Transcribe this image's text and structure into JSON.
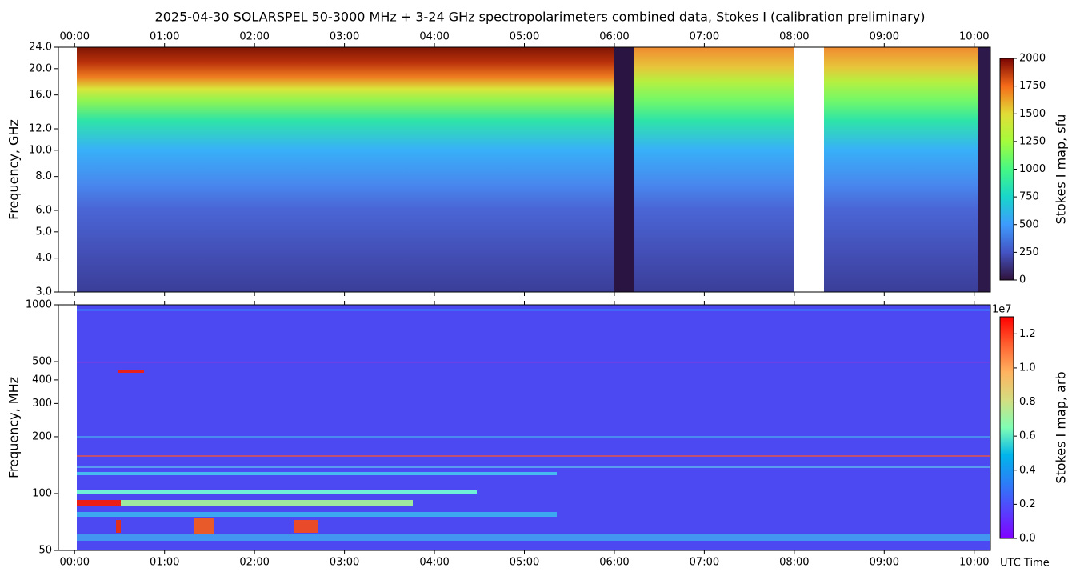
{
  "chart_data": [
    {
      "type": "heatmap",
      "title": "2025-04-30  SOLARSPEL  50-3000 MHz  +  3-24 GHz  spectropolarimeters combined data,  Stokes I  (calibration preliminary)",
      "y_label": "Frequency, GHz",
      "y_scale": "log",
      "ylim": [
        3,
        24
      ],
      "yticks": [
        {
          "value": 3,
          "label": "3.0"
        },
        {
          "value": 4,
          "label": "4.0"
        },
        {
          "value": 5,
          "label": "5.0"
        },
        {
          "value": 6,
          "label": "6.0"
        },
        {
          "value": 8,
          "label": "8.0"
        },
        {
          "value": 10,
          "label": "10.0"
        },
        {
          "value": 12,
          "label": "12.0"
        },
        {
          "value": 16,
          "label": "16.0"
        },
        {
          "value": 20,
          "label": "20.0"
        },
        {
          "value": 24,
          "label": "24.0"
        }
      ],
      "xlim": [
        -0.18,
        10.18
      ],
      "xticks": [
        {
          "value": 0,
          "label": "00:00"
        },
        {
          "value": 1,
          "label": "01:00"
        },
        {
          "value": 2,
          "label": "02:00"
        },
        {
          "value": 3,
          "label": "03:00"
        },
        {
          "value": 4,
          "label": "04:00"
        },
        {
          "value": 5,
          "label": "05:00"
        },
        {
          "value": 6,
          "label": "06:00"
        },
        {
          "value": 7,
          "label": "07:00"
        },
        {
          "value": 8,
          "label": "08:00"
        },
        {
          "value": 9,
          "label": "09:00"
        },
        {
          "value": 10,
          "label": "10:00"
        }
      ],
      "x_tick_labels_position": "top",
      "colorbar": {
        "label": "Stokes I map, sfu",
        "colormap": "turbo",
        "lim": [
          0,
          2000
        ],
        "ticks": [
          0,
          250,
          500,
          750,
          1000,
          1250,
          1500,
          1750,
          2000
        ]
      }
    },
    {
      "type": "heatmap",
      "y_label": "Frequency, MHz",
      "x_label": "UTC Time",
      "y_scale": "log",
      "ylim": [
        50,
        1000
      ],
      "yticks": [
        50,
        100,
        200,
        300,
        400,
        500,
        1000
      ],
      "xlim": [
        -0.18,
        10.18
      ],
      "xticks": [
        {
          "value": 0,
          "label": "00:00"
        },
        {
          "value": 1,
          "label": "01:00"
        },
        {
          "value": 2,
          "label": "02:00"
        },
        {
          "value": 3,
          "label": "03:00"
        },
        {
          "value": 4,
          "label": "04:00"
        },
        {
          "value": 5,
          "label": "05:00"
        },
        {
          "value": 6,
          "label": "06:00"
        },
        {
          "value": 7,
          "label": "07:00"
        },
        {
          "value": 8,
          "label": "08:00"
        },
        {
          "value": 9,
          "label": "09:00"
        },
        {
          "value": 10,
          "label": "10:00"
        }
      ],
      "x_tick_labels_position": "bottom",
      "colorbar": {
        "label": "Stokes I map, arb",
        "colormap": "rainbow",
        "lim": [
          0,
          1.3
        ],
        "offset_label": "1e7",
        "ticks": [
          {
            "value": 0,
            "label": "0.0"
          },
          0.2,
          0.4,
          0.6,
          0.8,
          {
            "value": 1,
            "label": "1.0"
          },
          1.2
        ]
      }
    }
  ]
}
